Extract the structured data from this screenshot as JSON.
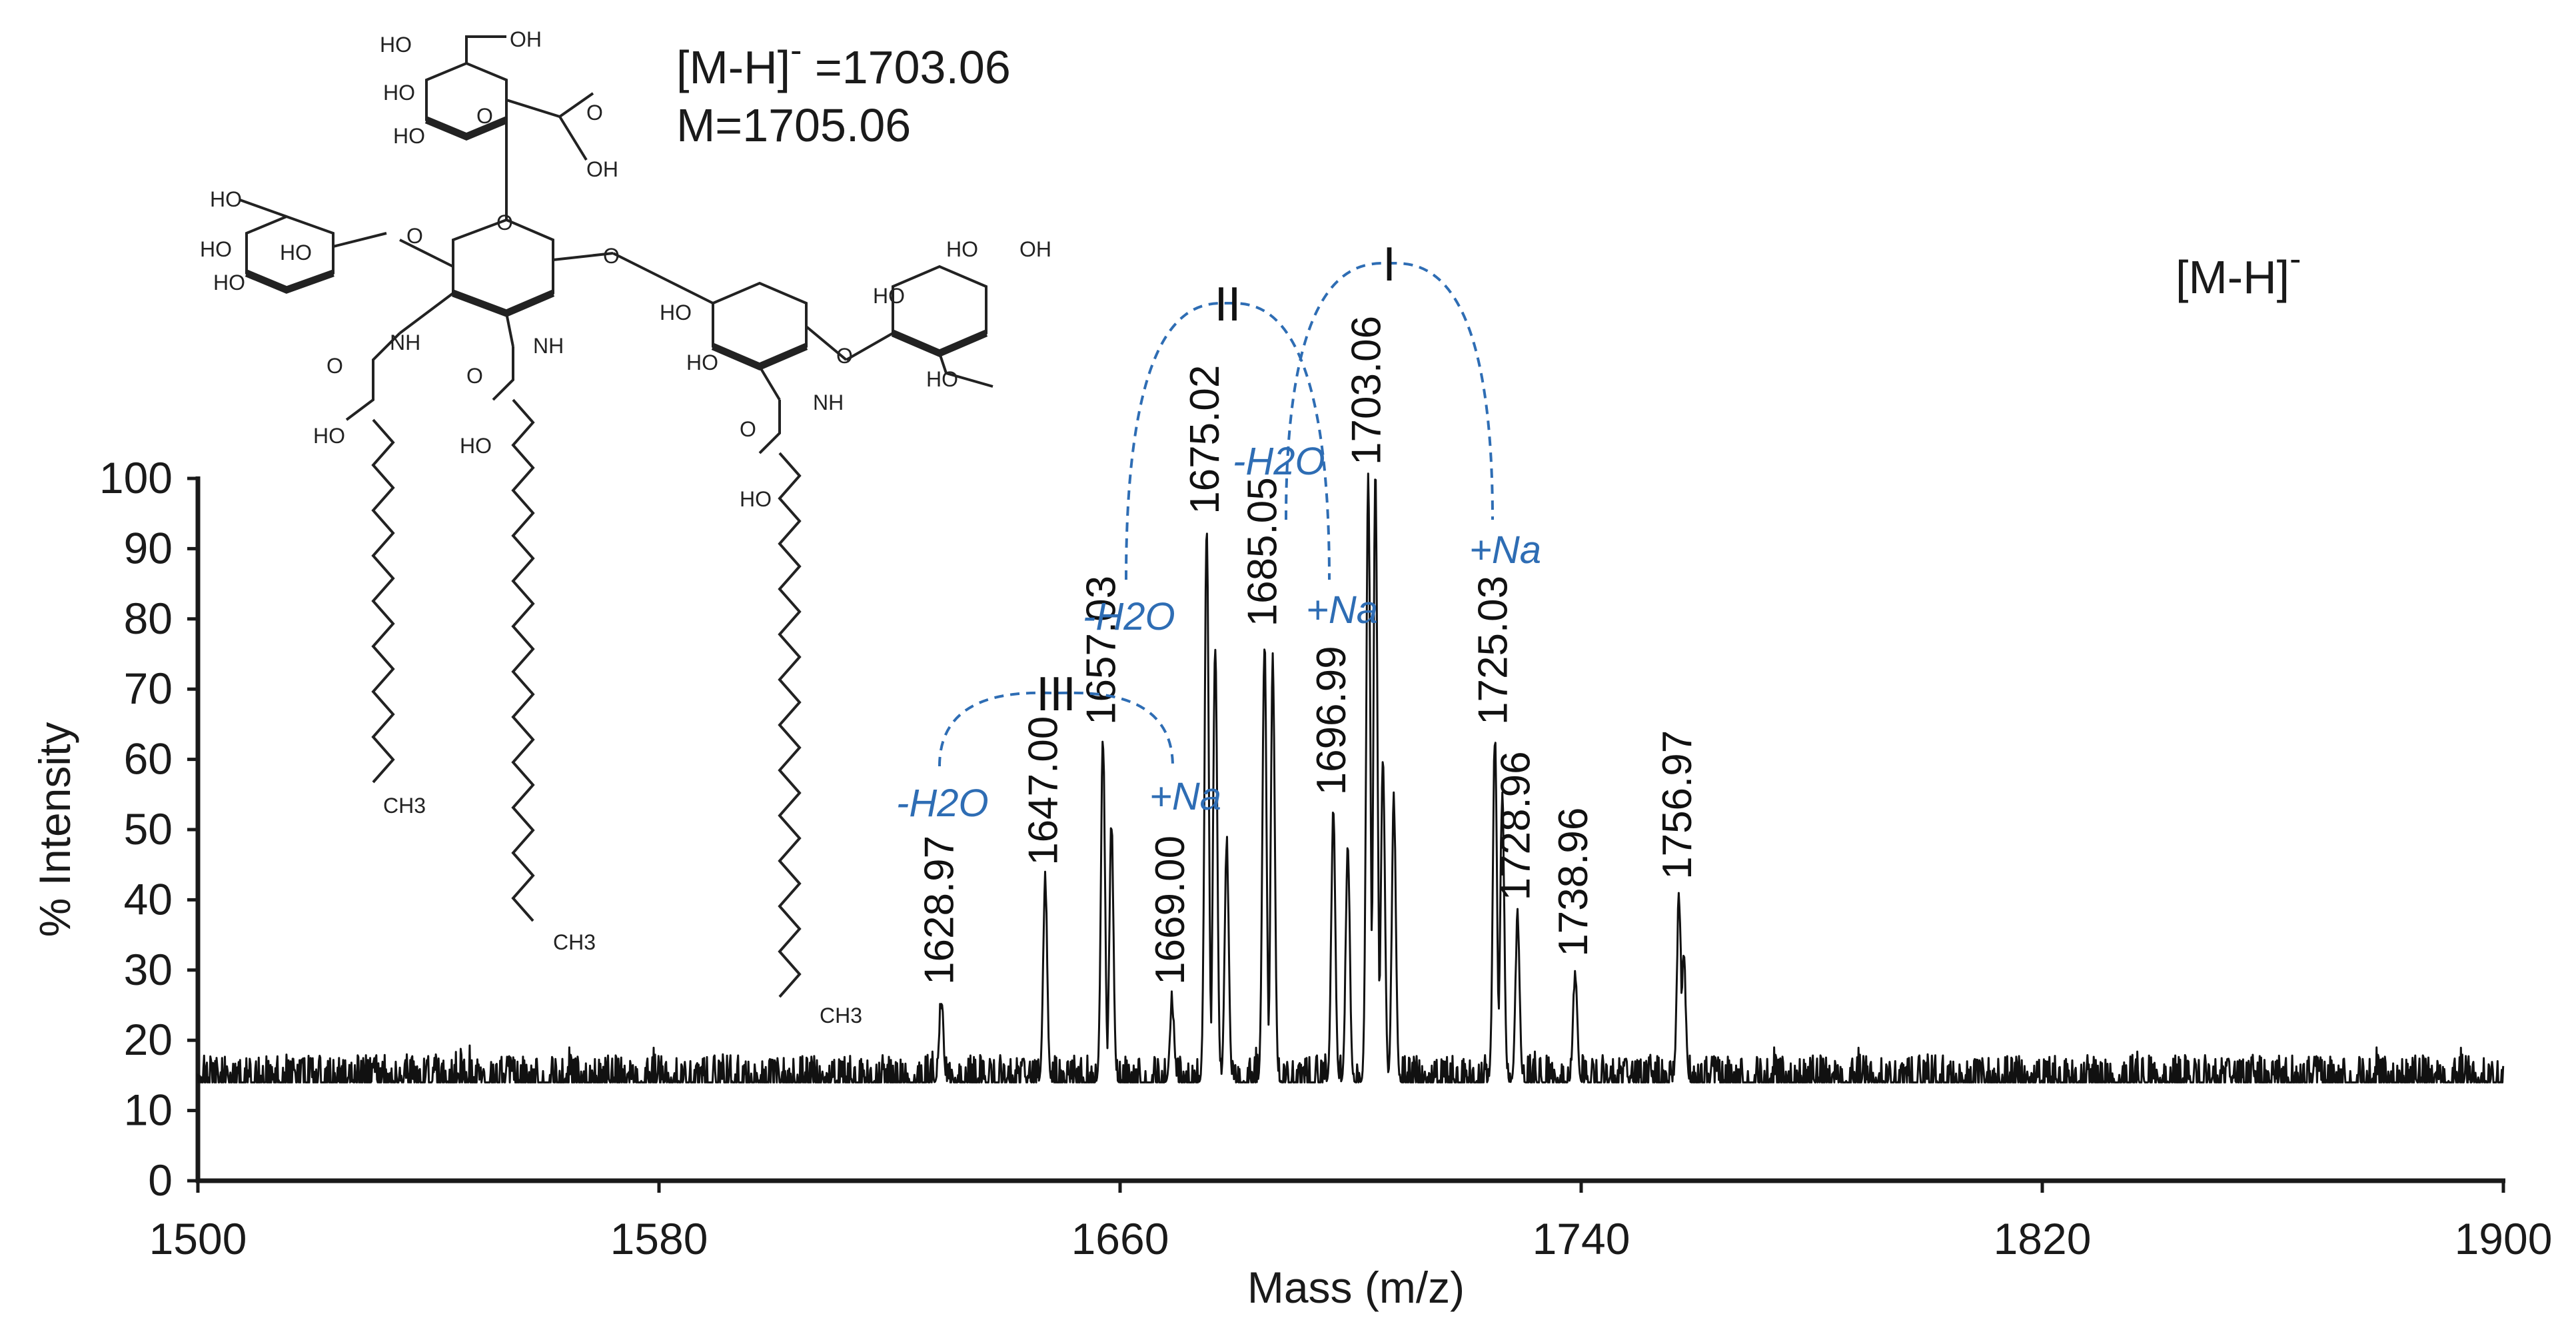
{
  "colors": {
    "spectrum": "#111111",
    "axis": "#1a1a1a",
    "annotation": "#2e6db4",
    "background": "#ffffff"
  },
  "header": {
    "ion_formula_left": "[M-H]",
    "ion_superscript": "-",
    "ion_value_text": " =1703.06",
    "mass_line": "M=1705.06",
    "mode_label": "[M-H]",
    "mode_superscript": "-"
  },
  "structure": {
    "description_name": "glycolipid-structure",
    "atoms": {
      "oh": "OH",
      "ho": "HO",
      "o": "O",
      "nh": "NH",
      "ch3": "CH3"
    }
  },
  "chart_data": {
    "type": "line",
    "title": "",
    "xlabel": "Mass (m/z)",
    "ylabel": "% Intensity",
    "xlim": [
      1500,
      1900
    ],
    "ylim": [
      0,
      100
    ],
    "xticks": [
      1500,
      1580,
      1660,
      1740,
      1820,
      1900
    ],
    "yticks": [
      0,
      10,
      20,
      30,
      40,
      50,
      60,
      70,
      80,
      90,
      100
    ],
    "baseline_level": 14,
    "baseline_noise": 4,
    "peaks": [
      {
        "mz": 1628.97,
        "intensity": 26,
        "label": "1628.97"
      },
      {
        "mz": 1647.0,
        "intensity": 43,
        "label": "1647.00"
      },
      {
        "mz": 1657.03,
        "intensity": 63,
        "label": "1657.03"
      },
      {
        "mz": 1658.5,
        "intensity": 51,
        "label": ""
      },
      {
        "mz": 1669.0,
        "intensity": 26,
        "label": "1669.00"
      },
      {
        "mz": 1675.02,
        "intensity": 93,
        "label": "1675.02"
      },
      {
        "mz": 1676.5,
        "intensity": 77,
        "label": ""
      },
      {
        "mz": 1678.5,
        "intensity": 48,
        "label": ""
      },
      {
        "mz": 1685.05,
        "intensity": 77,
        "label": "1685.05"
      },
      {
        "mz": 1686.5,
        "intensity": 74,
        "label": ""
      },
      {
        "mz": 1696.99,
        "intensity": 53,
        "label": "1696.99"
      },
      {
        "mz": 1699.5,
        "intensity": 48,
        "label": ""
      },
      {
        "mz": 1703.06,
        "intensity": 100,
        "label": "1703.06"
      },
      {
        "mz": 1704.3,
        "intensity": 100,
        "label": ""
      },
      {
        "mz": 1705.6,
        "intensity": 60,
        "label": ""
      },
      {
        "mz": 1707.5,
        "intensity": 54,
        "label": ""
      },
      {
        "mz": 1725.03,
        "intensity": 63,
        "label": "1725.03"
      },
      {
        "mz": 1726.3,
        "intensity": 55,
        "label": ""
      },
      {
        "mz": 1728.96,
        "intensity": 38,
        "label": "1728.96"
      },
      {
        "mz": 1738.96,
        "intensity": 30,
        "label": "1738.96"
      },
      {
        "mz": 1756.97,
        "intensity": 41,
        "label": "1756.97"
      },
      {
        "mz": 1757.8,
        "intensity": 32,
        "label": ""
      }
    ],
    "groups": [
      {
        "label": "I",
        "from_mz": 1703.06,
        "to_mz": 1725.03,
        "left_annotation": "",
        "right_annotation": "+Na"
      },
      {
        "label": "II",
        "from_mz": 1675.02,
        "to_mz": 1685.05,
        "left_annotation": "-H2O",
        "right_annotation": "+Na"
      },
      {
        "label": "III",
        "from_mz": 1628.97,
        "to_mz": 1669.0,
        "left_annotation": "-H2O",
        "right_annotation": "+Na"
      }
    ],
    "extra_annotations": [
      {
        "text": "-H2O",
        "near_group": "I"
      }
    ]
  }
}
